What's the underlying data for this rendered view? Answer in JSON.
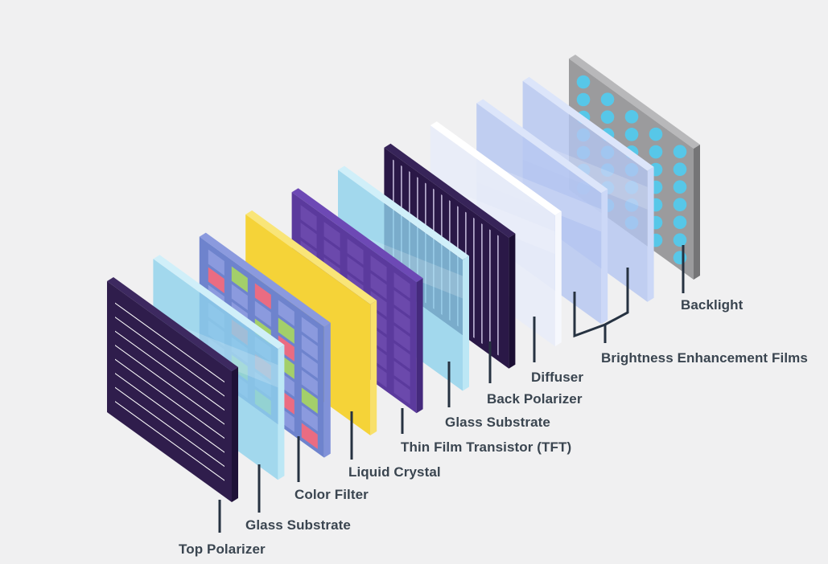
{
  "background": "#f0f0f1",
  "diagram": {
    "subject": "Exploded view of LCD display layers",
    "label_color": "#3a4550",
    "leader_color": "#263241"
  },
  "layers": [
    {
      "id": "top-polarizer",
      "name": "Top Polarizer",
      "type": "polarizer-diagonal-lines",
      "front": "#2f1d4c",
      "side": "#1f1238",
      "bevel": "#3d2960",
      "line_color": "#ffffff",
      "opacity": 1
    },
    {
      "id": "glass-substrate-front",
      "name": "Glass Substrate",
      "type": "glass",
      "front": "#8ed2ec",
      "side": "#bce7f5",
      "bevel": "#d0eff9",
      "opacity": 0.8
    },
    {
      "id": "color-filter",
      "name": "Color Filter",
      "type": "color-filter-grid",
      "front": "#6e83cd",
      "side": "#8192d9",
      "bevel": "#8b9ade",
      "opacity": 1,
      "cell_colors": {
        "P": "#8b9ade",
        "G": "#a3cf6a",
        "R": "#ea6c82"
      },
      "grid": [
        "PGRPP",
        "RPPGP",
        "PPGRP",
        "PRPGP",
        "PPRPG",
        "PGPRP",
        "PPGPR"
      ]
    },
    {
      "id": "liquid-crystal",
      "name": "Liquid Crystal",
      "type": "plain",
      "front": "#f5d338",
      "side": "#f8e06a",
      "bevel": "#f9e578",
      "opacity": 1
    },
    {
      "id": "tft",
      "name": "Thin Film Transistor (TFT)",
      "type": "tft-grid",
      "front": "#5b3a9d",
      "side": "#452a7d",
      "bevel": "#6d49b5",
      "cell_color": "#6b49ac",
      "opacity": 1
    },
    {
      "id": "glass-substrate-back",
      "name": "Glass Substrate",
      "type": "glass",
      "front": "#8ed2ec",
      "side": "#bce7f5",
      "bevel": "#d0eff9",
      "opacity": 0.8
    },
    {
      "id": "back-polarizer",
      "name": "Back Polarizer",
      "type": "polarizer-vertical-lines",
      "front": "#2a1847",
      "side": "#1b0e33",
      "bevel": "#372459",
      "line_color": "#d5cbeb",
      "opacity": 1
    },
    {
      "id": "diffuser",
      "name": "Diffuser",
      "type": "glass",
      "front": "#e8edf9",
      "side": "#f6f8fd",
      "bevel": "#ffffff",
      "opacity": 0.92
    },
    {
      "id": "bef-1",
      "name": "Brightness Enhancement Films",
      "type": "glass",
      "front": "#b4c6f1",
      "side": "#ccd8f7",
      "bevel": "#dce5fa",
      "opacity": 0.8
    },
    {
      "id": "bef-2",
      "name": "Brightness Enhancement Films",
      "type": "glass",
      "front": "#b4c6f1",
      "side": "#ccd8f7",
      "bevel": "#dce5fa",
      "opacity": 0.8
    },
    {
      "id": "backlight",
      "name": "Backlight",
      "type": "dots",
      "front": "#9b9b9d",
      "side": "#757577",
      "bevel": "#b8b8ba",
      "dot_color": "#57c7e8",
      "opacity": 1
    }
  ],
  "labels": [
    {
      "text": "Top Polarizer",
      "layer": "top-polarizer"
    },
    {
      "text": "Glass Substrate",
      "layer": "glass-substrate-front"
    },
    {
      "text": "Color Filter",
      "layer": "color-filter"
    },
    {
      "text": "Liquid Crystal",
      "layer": "liquid-crystal"
    },
    {
      "text": "Thin Film Transistor (TFT)",
      "layer": "tft"
    },
    {
      "text": "Glass Substrate",
      "layer": "glass-substrate-back"
    },
    {
      "text": "Back Polarizer",
      "layer": "back-polarizer"
    },
    {
      "text": "Diffuser",
      "layer": "diffuser"
    },
    {
      "text": "Brightness Enhancement Films",
      "layer": "bef-1,bef-2"
    },
    {
      "text": "Backlight",
      "layer": "backlight"
    }
  ]
}
